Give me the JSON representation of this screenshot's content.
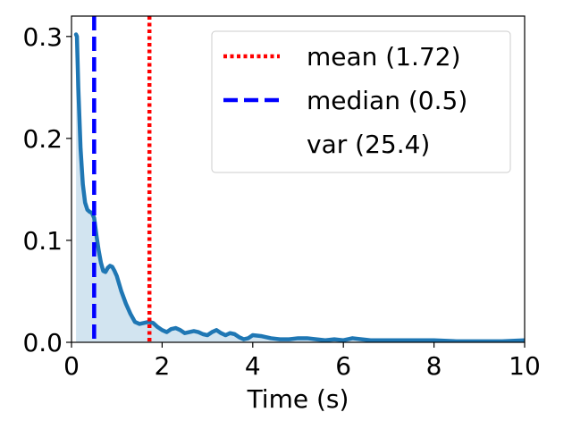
{
  "chart_data": {
    "type": "line",
    "title": "",
    "xlabel": "Time (s)",
    "ylabel": "",
    "xlim": [
      0,
      10
    ],
    "ylim": [
      0,
      0.32
    ],
    "x_ticks": [
      0,
      2,
      4,
      6,
      8,
      10
    ],
    "x_tick_labels": [
      "0",
      "2",
      "4",
      "6",
      "8",
      "10"
    ],
    "y_ticks": [
      0,
      0.1,
      0.2,
      0.3
    ],
    "y_tick_labels": [
      "0.0",
      "0.1",
      "0.2",
      "0.3"
    ],
    "grid": false,
    "legend_position": "top-right",
    "series": [
      {
        "color": "#1f77b4",
        "fill_color": "#1f77b4",
        "fill": true,
        "x": [
          0.1,
          0.12,
          0.15,
          0.2,
          0.25,
          0.3,
          0.35,
          0.4,
          0.45,
          0.5,
          0.55,
          0.6,
          0.65,
          0.7,
          0.75,
          0.8,
          0.85,
          0.9,
          0.95,
          1.0,
          1.1,
          1.2,
          1.3,
          1.4,
          1.5,
          1.6,
          1.7,
          1.8,
          1.9,
          2.0,
          2.1,
          2.2,
          2.3,
          2.4,
          2.5,
          2.6,
          2.7,
          2.8,
          2.9,
          3.0,
          3.1,
          3.2,
          3.3,
          3.4,
          3.5,
          3.6,
          3.7,
          3.8,
          3.9,
          4.0,
          4.2,
          4.4,
          4.6,
          4.8,
          5.0,
          5.2,
          5.4,
          5.6,
          5.8,
          6.0,
          6.2,
          6.4,
          6.6,
          6.8,
          7.0,
          7.5,
          8.0,
          8.5,
          9.0,
          9.5,
          10.0
        ],
        "y": [
          0.302,
          0.3,
          0.25,
          0.19,
          0.155,
          0.137,
          0.13,
          0.128,
          0.127,
          0.122,
          0.105,
          0.09,
          0.078,
          0.07,
          0.069,
          0.073,
          0.075,
          0.074,
          0.07,
          0.065,
          0.05,
          0.038,
          0.028,
          0.02,
          0.018,
          0.019,
          0.02,
          0.019,
          0.015,
          0.012,
          0.01,
          0.013,
          0.014,
          0.012,
          0.009,
          0.01,
          0.011,
          0.01,
          0.008,
          0.007,
          0.01,
          0.012,
          0.009,
          0.007,
          0.009,
          0.008,
          0.005,
          0.003,
          0.004,
          0.007,
          0.006,
          0.004,
          0.003,
          0.003,
          0.004,
          0.004,
          0.003,
          0.002,
          0.003,
          0.002,
          0.004,
          0.003,
          0.002,
          0.002,
          0.002,
          0.002,
          0.002,
          0.001,
          0.001,
          0.001,
          0.002
        ]
      }
    ],
    "vlines": [
      {
        "label": "mean (1.72)",
        "x": 1.72,
        "color": "#ff0000",
        "style": "dotted"
      },
      {
        "label": "median (0.5)",
        "x": 0.5,
        "color": "#0000ff",
        "style": "dashed"
      }
    ],
    "legend": [
      {
        "label": "mean (1.72)",
        "color": "#ff0000",
        "style": "dotted"
      },
      {
        "label": "median (0.5)",
        "color": "#0000ff",
        "style": "dashed"
      },
      {
        "label": "var (25.4)",
        "color": "",
        "style": "none"
      }
    ]
  }
}
